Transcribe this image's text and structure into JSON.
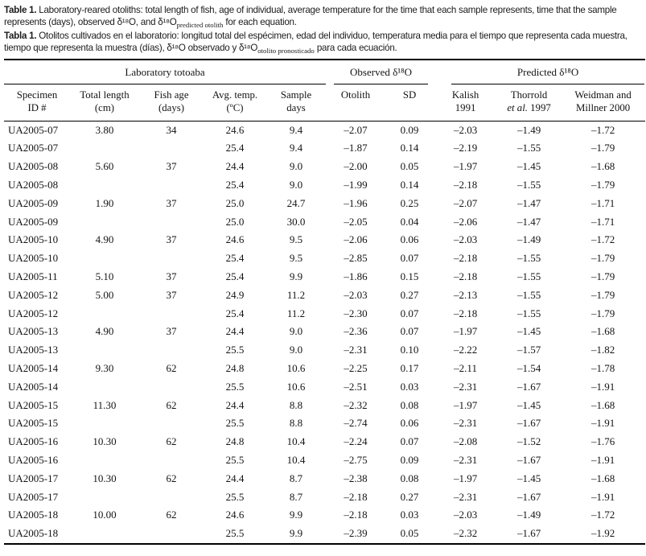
{
  "page": {
    "background": "#ffffff",
    "text_color": "#161616",
    "rule_color": "#000000"
  },
  "caption_en": {
    "label": "Table 1.",
    "line1": " Laboratory-reared otoliths: total length of fish, age of individual, average temperature for the time that each sample represents, time that the sample",
    "line2_pre": "represents (days), observed δ¹⁸O, and δ¹⁸O",
    "line2_sub": "predicted otolith",
    "line2_post": " for each equation."
  },
  "caption_es": {
    "label": "Tabla 1.",
    "line1": " Otolitos cultivados en el laboratorio: longitud total del espécimen, edad del individuo, temperatura media para el tiempo que representa cada muestra,",
    "line2_pre": "tiempo que representa la muestra (días), δ¹⁸O observado y δ¹⁸O",
    "line2_sub": "otolito pronosticado",
    "line2_post": " para cada ecuación."
  },
  "table": {
    "groups": {
      "lab": "Laboratory totoaba",
      "observed": "Observed δ¹⁸O",
      "predicted": "Predicted δ¹⁸O"
    },
    "columns": {
      "specimen_l1": "Specimen",
      "specimen_l2": "ID #",
      "length_l1": "Total length",
      "length_l2": "(cm)",
      "age_l1": "Fish age",
      "age_l2": "(days)",
      "temp_l1": "Avg. temp.",
      "temp_l2": "(ºC)",
      "sample_l1": "Sample",
      "sample_l2": "days",
      "otolith": "Otolith",
      "sd": "SD",
      "kalish_l1": "Kalish",
      "kalish_l2": "1991",
      "thorrold_l1": "Thorrold",
      "thorrold_l2_italic": "et al.",
      "thorrold_l2_rest": " 1997",
      "weidman_l1": "Weidman and",
      "weidman_l2": "Millner 2000"
    },
    "rows": [
      [
        "UA2005-07",
        "3.80",
        "34",
        "24.6",
        "9.4",
        "–2.07",
        "0.09",
        "–2.03",
        "–1.49",
        "–1.72"
      ],
      [
        "UA2005-07",
        "",
        "",
        "25.4",
        "9.4",
        "–1.87",
        "0.14",
        "–2.19",
        "–1.55",
        "–1.79"
      ],
      [
        "UA2005-08",
        "5.60",
        "37",
        "24.4",
        "9.0",
        "–2.00",
        "0.05",
        "–1.97",
        "–1.45",
        "–1.68"
      ],
      [
        "UA2005-08",
        "",
        "",
        "25.4",
        "9.0",
        "–1.99",
        "0.14",
        "–2.18",
        "–1.55",
        "–1.79"
      ],
      [
        "UA2005-09",
        "1.90",
        "37",
        "25.0",
        "24.7",
        "–1.96",
        "0.25",
        "–2.07",
        "–1.47",
        "–1.71"
      ],
      [
        "UA2005-09",
        "",
        "",
        "25.0",
        "30.0",
        "–2.05",
        "0.04",
        "–2.06",
        "–1.47",
        "–1.71"
      ],
      [
        "UA2005-10",
        "4.90",
        "37",
        "24.6",
        "9.5",
        "–2.06",
        "0.06",
        "–2.03",
        "–1.49",
        "–1.72"
      ],
      [
        "UA2005-10",
        "",
        "",
        "25.4",
        "9.5",
        "–2.85",
        "0.07",
        "–2.18",
        "–1.55",
        "–1.79"
      ],
      [
        "UA2005-11",
        "5.10",
        "37",
        "25.4",
        "9.9",
        "–1.86",
        "0.15",
        "–2.18",
        "–1.55",
        "–1.79"
      ],
      [
        "UA2005-12",
        "5.00",
        "37",
        "24.9",
        "11.2",
        "–2.03",
        "0.27",
        "–2.13",
        "–1.55",
        "–1.79"
      ],
      [
        "UA2005-12",
        "",
        "",
        "25.4",
        "11.2",
        "–2.30",
        "0.07",
        "–2.18",
        "–1.55",
        "–1.79"
      ],
      [
        "UA2005-13",
        "4.90",
        "37",
        "24.4",
        "9.0",
        "–2.36",
        "0.07",
        "–1.97",
        "–1.45",
        "–1.68"
      ],
      [
        "UA2005-13",
        "",
        "",
        "25.5",
        "9.0",
        "–2.31",
        "0.10",
        "–2.22",
        "–1.57",
        "–1.82"
      ],
      [
        "UA2005-14",
        "9.30",
        "62",
        "24.8",
        "10.6",
        "–2.25",
        "0.17",
        "–2.11",
        "–1.54",
        "–1.78"
      ],
      [
        "UA2005-14",
        "",
        "",
        "25.5",
        "10.6",
        "–2.51",
        "0.03",
        "–2.31",
        "–1.67",
        "–1.91"
      ],
      [
        "UA2005-15",
        "11.30",
        "62",
        "24.4",
        "8.8",
        "–2.32",
        "0.08",
        "–1.97",
        "–1.45",
        "–1.68"
      ],
      [
        "UA2005-15",
        "",
        "",
        "25.5",
        "8.8",
        "–2.74",
        "0.06",
        "–2.31",
        "–1.67",
        "–1.91"
      ],
      [
        "UA2005-16",
        "10.30",
        "62",
        "24.8",
        "10.4",
        "–2.24",
        "0.07",
        "–2.08",
        "–1.52",
        "–1.76"
      ],
      [
        "UA2005-16",
        "",
        "",
        "25.5",
        "10.4",
        "–2.75",
        "0.09",
        "–2.31",
        "–1.67",
        "–1.91"
      ],
      [
        "UA2005-17",
        "10.30",
        "62",
        "24.4",
        "8.7",
        "–2.38",
        "0.08",
        "–1.97",
        "–1.45",
        "–1.68"
      ],
      [
        "UA2005-17",
        "",
        "",
        "25.5",
        "8.7",
        "–2.18",
        "0.27",
        "–2.31",
        "–1.67",
        "–1.91"
      ],
      [
        "UA2005-18",
        "10.00",
        "62",
        "24.6",
        "9.9",
        "–2.18",
        "0.03",
        "–2.03",
        "–1.49",
        "–1.72"
      ],
      [
        "UA2005-18",
        "",
        "",
        "25.5",
        "9.9",
        "–2.39",
        "0.05",
        "–2.32",
        "–1.67",
        "–1.92"
      ]
    ]
  }
}
